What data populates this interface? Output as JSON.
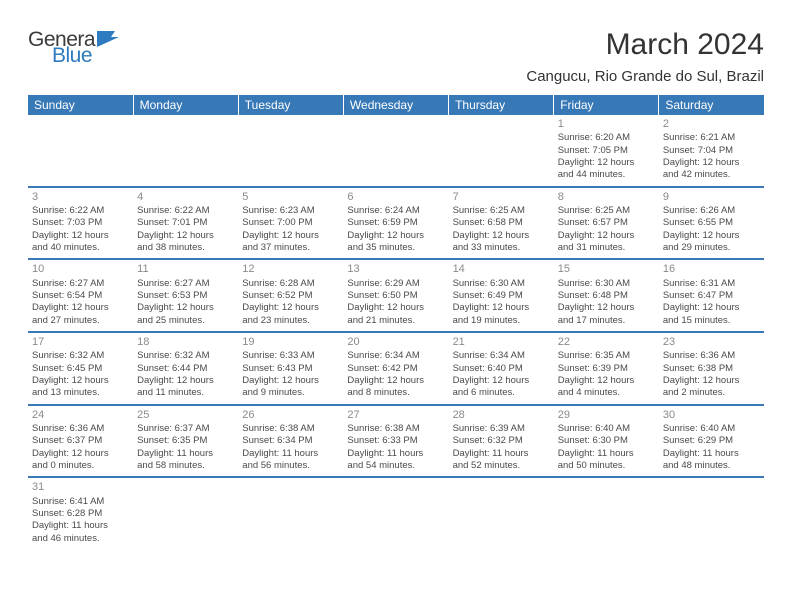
{
  "logo": {
    "text1": "Genera",
    "text2": "Blue",
    "flag_color": "#2f7bbf"
  },
  "title": "March 2024",
  "location": "Cangucu, Rio Grande do Sul, Brazil",
  "colors": {
    "header_bg": "#3778b7",
    "header_fg": "#ffffff",
    "row_divider": "#3778b7",
    "daynum": "#8a8a8a",
    "body_text": "#4a4a4a"
  },
  "day_headers": [
    "Sunday",
    "Monday",
    "Tuesday",
    "Wednesday",
    "Thursday",
    "Friday",
    "Saturday"
  ],
  "weeks": [
    [
      null,
      null,
      null,
      null,
      null,
      {
        "n": "1",
        "sunrise": "6:20 AM",
        "sunset": "7:05 PM",
        "day_h": "12",
        "day_m": "44"
      },
      {
        "n": "2",
        "sunrise": "6:21 AM",
        "sunset": "7:04 PM",
        "day_h": "12",
        "day_m": "42"
      }
    ],
    [
      {
        "n": "3",
        "sunrise": "6:22 AM",
        "sunset": "7:03 PM",
        "day_h": "12",
        "day_m": "40"
      },
      {
        "n": "4",
        "sunrise": "6:22 AM",
        "sunset": "7:01 PM",
        "day_h": "12",
        "day_m": "38"
      },
      {
        "n": "5",
        "sunrise": "6:23 AM",
        "sunset": "7:00 PM",
        "day_h": "12",
        "day_m": "37"
      },
      {
        "n": "6",
        "sunrise": "6:24 AM",
        "sunset": "6:59 PM",
        "day_h": "12",
        "day_m": "35"
      },
      {
        "n": "7",
        "sunrise": "6:25 AM",
        "sunset": "6:58 PM",
        "day_h": "12",
        "day_m": "33"
      },
      {
        "n": "8",
        "sunrise": "6:25 AM",
        "sunset": "6:57 PM",
        "day_h": "12",
        "day_m": "31"
      },
      {
        "n": "9",
        "sunrise": "6:26 AM",
        "sunset": "6:55 PM",
        "day_h": "12",
        "day_m": "29"
      }
    ],
    [
      {
        "n": "10",
        "sunrise": "6:27 AM",
        "sunset": "6:54 PM",
        "day_h": "12",
        "day_m": "27"
      },
      {
        "n": "11",
        "sunrise": "6:27 AM",
        "sunset": "6:53 PM",
        "day_h": "12",
        "day_m": "25"
      },
      {
        "n": "12",
        "sunrise": "6:28 AM",
        "sunset": "6:52 PM",
        "day_h": "12",
        "day_m": "23"
      },
      {
        "n": "13",
        "sunrise": "6:29 AM",
        "sunset": "6:50 PM",
        "day_h": "12",
        "day_m": "21"
      },
      {
        "n": "14",
        "sunrise": "6:30 AM",
        "sunset": "6:49 PM",
        "day_h": "12",
        "day_m": "19"
      },
      {
        "n": "15",
        "sunrise": "6:30 AM",
        "sunset": "6:48 PM",
        "day_h": "12",
        "day_m": "17"
      },
      {
        "n": "16",
        "sunrise": "6:31 AM",
        "sunset": "6:47 PM",
        "day_h": "12",
        "day_m": "15"
      }
    ],
    [
      {
        "n": "17",
        "sunrise": "6:32 AM",
        "sunset": "6:45 PM",
        "day_h": "12",
        "day_m": "13"
      },
      {
        "n": "18",
        "sunrise": "6:32 AM",
        "sunset": "6:44 PM",
        "day_h": "12",
        "day_m": "11"
      },
      {
        "n": "19",
        "sunrise": "6:33 AM",
        "sunset": "6:43 PM",
        "day_h": "12",
        "day_m": "9"
      },
      {
        "n": "20",
        "sunrise": "6:34 AM",
        "sunset": "6:42 PM",
        "day_h": "12",
        "day_m": "8"
      },
      {
        "n": "21",
        "sunrise": "6:34 AM",
        "sunset": "6:40 PM",
        "day_h": "12",
        "day_m": "6"
      },
      {
        "n": "22",
        "sunrise": "6:35 AM",
        "sunset": "6:39 PM",
        "day_h": "12",
        "day_m": "4"
      },
      {
        "n": "23",
        "sunrise": "6:36 AM",
        "sunset": "6:38 PM",
        "day_h": "12",
        "day_m": "2"
      }
    ],
    [
      {
        "n": "24",
        "sunrise": "6:36 AM",
        "sunset": "6:37 PM",
        "day_h": "12",
        "day_m": "0"
      },
      {
        "n": "25",
        "sunrise": "6:37 AM",
        "sunset": "6:35 PM",
        "day_h": "11",
        "day_m": "58"
      },
      {
        "n": "26",
        "sunrise": "6:38 AM",
        "sunset": "6:34 PM",
        "day_h": "11",
        "day_m": "56"
      },
      {
        "n": "27",
        "sunrise": "6:38 AM",
        "sunset": "6:33 PM",
        "day_h": "11",
        "day_m": "54"
      },
      {
        "n": "28",
        "sunrise": "6:39 AM",
        "sunset": "6:32 PM",
        "day_h": "11",
        "day_m": "52"
      },
      {
        "n": "29",
        "sunrise": "6:40 AM",
        "sunset": "6:30 PM",
        "day_h": "11",
        "day_m": "50"
      },
      {
        "n": "30",
        "sunrise": "6:40 AM",
        "sunset": "6:29 PM",
        "day_h": "11",
        "day_m": "48"
      }
    ],
    [
      {
        "n": "31",
        "sunrise": "6:41 AM",
        "sunset": "6:28 PM",
        "day_h": "11",
        "day_m": "46"
      },
      null,
      null,
      null,
      null,
      null,
      null
    ]
  ],
  "labels": {
    "sunrise": "Sunrise:",
    "sunset": "Sunset:",
    "daylight": "Daylight:",
    "hours": "hours",
    "and": "and",
    "minutes": "minutes."
  }
}
